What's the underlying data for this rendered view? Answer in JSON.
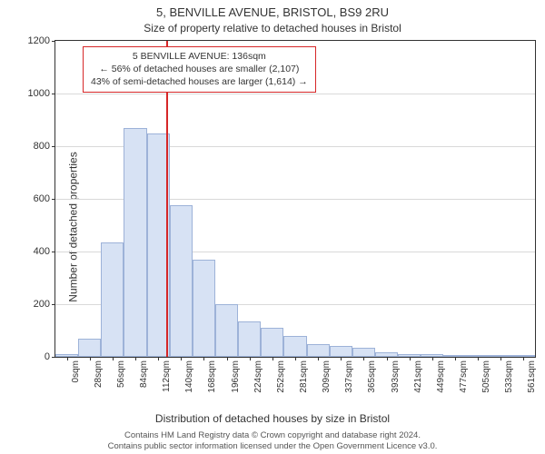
{
  "title": "5, BENVILLE AVENUE, BRISTOL, BS9 2RU",
  "subtitle": "Size of property relative to detached houses in Bristol",
  "ylabel": "Number of detached properties",
  "xlabel": "Distribution of detached houses by size in Bristol",
  "footnote_line1": "Contains HM Land Registry data © Crown copyright and database right 2024.",
  "footnote_line2": "Contains public sector information licensed under the Open Government Licence v3.0.",
  "chart": {
    "type": "histogram",
    "background_color": "#ffffff",
    "border_color": "#333333",
    "grid_color": "#d9d9d9",
    "bar_fill": "#d7e2f4",
    "bar_stroke": "#9db2d8",
    "bar_stroke_width": 1,
    "reference_line_color": "#d62728",
    "reference_line_width": 2,
    "annotation_border": "#d62728",
    "label_fontsize": 12,
    "tick_fontsize": 11,
    "ylim": [
      0,
      1200
    ],
    "ytick_step": 200,
    "x_categories": [
      "0sqm",
      "28sqm",
      "56sqm",
      "84sqm",
      "112sqm",
      "140sqm",
      "168sqm",
      "196sqm",
      "224sqm",
      "252sqm",
      "281sqm",
      "309sqm",
      "337sqm",
      "365sqm",
      "393sqm",
      "421sqm",
      "449sqm",
      "477sqm",
      "505sqm",
      "533sqm",
      "561sqm"
    ],
    "values": [
      10,
      70,
      435,
      870,
      850,
      575,
      370,
      200,
      135,
      110,
      80,
      50,
      40,
      35,
      18,
      12,
      10,
      6,
      4,
      3,
      2
    ],
    "reference_index": 4.85,
    "annotation": {
      "line1": "5 BENVILLE AVENUE: 136sqm",
      "line2": "← 56% of detached houses are smaller (2,107)",
      "line3": "43% of semi-detached houses are larger (1,614) →"
    }
  }
}
